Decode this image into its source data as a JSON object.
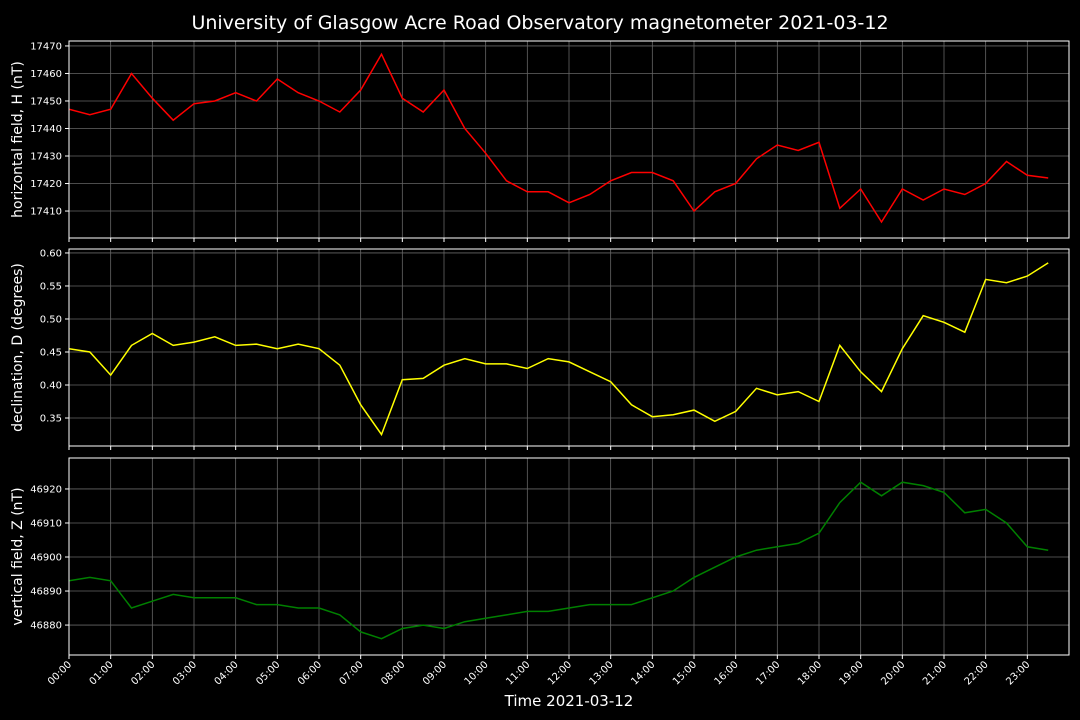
{
  "chart_data": [
    {
      "type": "line",
      "title": "University of Glasgow Acre Road Observatory magnetometer 2021-03-12",
      "ylabel": "horizontal field, H (nT)",
      "color": "#ff0000",
      "grid": true,
      "x": [
        "00:00",
        "00:30",
        "01:00",
        "01:30",
        "02:00",
        "02:30",
        "03:00",
        "03:30",
        "04:00",
        "04:30",
        "05:00",
        "05:30",
        "06:00",
        "06:30",
        "07:00",
        "07:30",
        "08:00",
        "08:30",
        "09:00",
        "09:30",
        "10:00",
        "10:30",
        "11:00",
        "11:30",
        "12:00",
        "12:30",
        "13:00",
        "13:30",
        "14:00",
        "14:30",
        "15:00",
        "15:30",
        "16:00",
        "16:30",
        "17:00",
        "17:30",
        "18:00",
        "18:30",
        "19:00",
        "19:30",
        "20:00",
        "20:30",
        "21:00",
        "21:30",
        "22:00",
        "22:30",
        "23:00",
        "23:30"
      ],
      "values": [
        17447,
        17445,
        17447,
        17460,
        17451,
        17443,
        17449,
        17450,
        17453,
        17450,
        17458,
        17453,
        17450,
        17446,
        17454,
        17467,
        17451,
        17446,
        17454,
        17440,
        17431,
        17421,
        17417,
        17417,
        17413,
        17416,
        17421,
        17424,
        17424,
        17421,
        17410,
        17417,
        17420,
        17429,
        17434,
        17432,
        17435,
        17411,
        17418,
        17406,
        17418,
        17414,
        17418,
        17416,
        17420,
        17428,
        17423,
        17422
      ],
      "xlim": [
        "00:00",
        "24:00"
      ],
      "xticks": [
        "00:00",
        "01:00",
        "02:00",
        "03:00",
        "04:00",
        "05:00",
        "06:00",
        "07:00",
        "08:00",
        "09:00",
        "10:00",
        "11:00",
        "12:00",
        "13:00",
        "14:00",
        "15:00",
        "16:00",
        "17:00",
        "18:00",
        "19:00",
        "20:00",
        "21:00",
        "22:00",
        "23:00"
      ],
      "ylim": [
        17400.2,
        17471.8
      ],
      "yticks": [
        17410,
        17420,
        17430,
        17440,
        17450,
        17460,
        17470
      ]
    },
    {
      "type": "line",
      "ylabel": "declination, D (degrees)",
      "color": "#ffff00",
      "grid": true,
      "x": [
        "00:00",
        "00:30",
        "01:00",
        "01:30",
        "02:00",
        "02:30",
        "03:00",
        "03:30",
        "04:00",
        "04:30",
        "05:00",
        "05:30",
        "06:00",
        "06:30",
        "07:00",
        "07:30",
        "08:00",
        "08:30",
        "09:00",
        "09:30",
        "10:00",
        "10:30",
        "11:00",
        "11:30",
        "12:00",
        "12:30",
        "13:00",
        "13:30",
        "14:00",
        "14:30",
        "15:00",
        "15:30",
        "16:00",
        "16:30",
        "17:00",
        "17:30",
        "18:00",
        "18:30",
        "19:00",
        "19:30",
        "20:00",
        "20:30",
        "21:00",
        "21:30",
        "22:00",
        "22:30",
        "23:00",
        "23:30"
      ],
      "values": [
        0.455,
        0.45,
        0.415,
        0.46,
        0.478,
        0.46,
        0.465,
        0.473,
        0.46,
        0.462,
        0.455,
        0.462,
        0.455,
        0.43,
        0.37,
        0.325,
        0.408,
        0.41,
        0.43,
        0.44,
        0.432,
        0.432,
        0.425,
        0.44,
        0.435,
        0.42,
        0.405,
        0.37,
        0.352,
        0.355,
        0.362,
        0.345,
        0.36,
        0.395,
        0.385,
        0.39,
        0.375,
        0.46,
        0.42,
        0.39,
        0.455,
        0.505,
        0.495,
        0.48,
        0.56,
        0.555,
        0.565,
        0.585
      ],
      "xlim": [
        "00:00",
        "24:00"
      ],
      "xticks": [
        "00:00",
        "01:00",
        "02:00",
        "03:00",
        "04:00",
        "05:00",
        "06:00",
        "07:00",
        "08:00",
        "09:00",
        "10:00",
        "11:00",
        "12:00",
        "13:00",
        "14:00",
        "15:00",
        "16:00",
        "17:00",
        "18:00",
        "19:00",
        "20:00",
        "21:00",
        "22:00",
        "23:00"
      ],
      "ylim": [
        0.3076,
        0.606
      ],
      "yticks": [
        0.35,
        {
          "value": 0.4,
          "label": "0.40"
        },
        0.45,
        {
          "value": 0.5,
          "label": "0.50"
        },
        0.55,
        {
          "value": 0.6,
          "label": "0.60"
        }
      ]
    },
    {
      "type": "line",
      "ylabel": "vertical field, Z (nT)",
      "xlabel": "Time 2021-03-12",
      "color": "#008000",
      "grid": true,
      "xticklabels": true,
      "x": [
        "00:00",
        "00:30",
        "01:00",
        "01:30",
        "02:00",
        "02:30",
        "03:00",
        "03:30",
        "04:00",
        "04:30",
        "05:00",
        "05:30",
        "06:00",
        "06:30",
        "07:00",
        "07:30",
        "08:00",
        "08:30",
        "09:00",
        "09:30",
        "10:00",
        "10:30",
        "11:00",
        "11:30",
        "12:00",
        "12:30",
        "13:00",
        "13:30",
        "14:00",
        "14:30",
        "15:00",
        "15:30",
        "16:00",
        "16:30",
        "17:00",
        "17:30",
        "18:00",
        "18:30",
        "19:00",
        "19:30",
        "20:00",
        "20:30",
        "21:00",
        "21:30",
        "22:00",
        "22:30",
        "23:00",
        "23:30"
      ],
      "values": [
        46893,
        46894,
        46893,
        46885,
        46887,
        46889,
        46888,
        46888,
        46888,
        46886,
        46886,
        46885,
        46885,
        46883,
        46878,
        46876,
        46879,
        46880,
        46879,
        46881,
        46882,
        46883,
        46884,
        46884,
        46885,
        46886,
        46886,
        46886,
        46888,
        46890,
        46894,
        46897,
        46900,
        46902,
        46903,
        46904,
        46907,
        46916,
        46922,
        46918,
        46922,
        46921,
        46919,
        46913,
        46914,
        46910,
        46903,
        46902
      ],
      "xlim": [
        "00:00",
        "24:00"
      ],
      "xticks": [
        "00:00",
        "01:00",
        "02:00",
        "03:00",
        "04:00",
        "05:00",
        "06:00",
        "07:00",
        "08:00",
        "09:00",
        "10:00",
        "11:00",
        "12:00",
        "13:00",
        "14:00",
        "15:00",
        "16:00",
        "17:00",
        "18:00",
        "19:00",
        "20:00",
        "21:00",
        "22:00",
        "23:00"
      ],
      "ylim": [
        46871.2,
        46929.1
      ],
      "yticks": [
        46880,
        46890,
        46900,
        46910,
        46920
      ]
    }
  ]
}
